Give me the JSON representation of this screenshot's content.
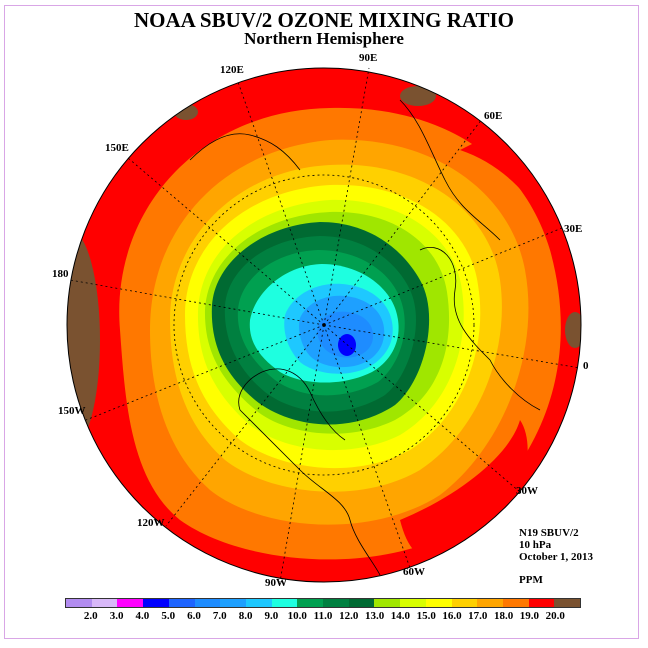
{
  "title": "NOAA SBUV/2 OZONE MIXING RATIO",
  "subtitle": "Northern Hemisphere",
  "info": {
    "satellite": "N19 SBUV/2",
    "level": "10 hPa",
    "date": "October 1, 2013",
    "units": "PPM"
  },
  "longitude_labels": [
    "90E",
    "60E",
    "30E",
    "0",
    "30W",
    "60W",
    "90W",
    "120W",
    "150W",
    "180",
    "150E",
    "120E"
  ],
  "colorbar": {
    "labels": [
      "2.0",
      "3.0",
      "4.0",
      "5.0",
      "6.0",
      "7.0",
      "8.0",
      "9.0",
      "10.0",
      "11.0",
      "12.0",
      "13.0",
      "14.0",
      "15.0",
      "16.0",
      "17.0",
      "18.0",
      "19.0",
      "20.0"
    ],
    "colors": [
      "#b28cf0",
      "#d8b8f8",
      "#ff00ff",
      "#0000ff",
      "#1e64ff",
      "#1e8cff",
      "#1ea0ff",
      "#1ec8ff",
      "#1effe0",
      "#00a050",
      "#008040",
      "#006a32",
      "#a0e600",
      "#d8ff00",
      "#ffff00",
      "#ffd000",
      "#ffa500",
      "#ff7800",
      "#ff0000",
      "#7a5230"
    ]
  }
}
